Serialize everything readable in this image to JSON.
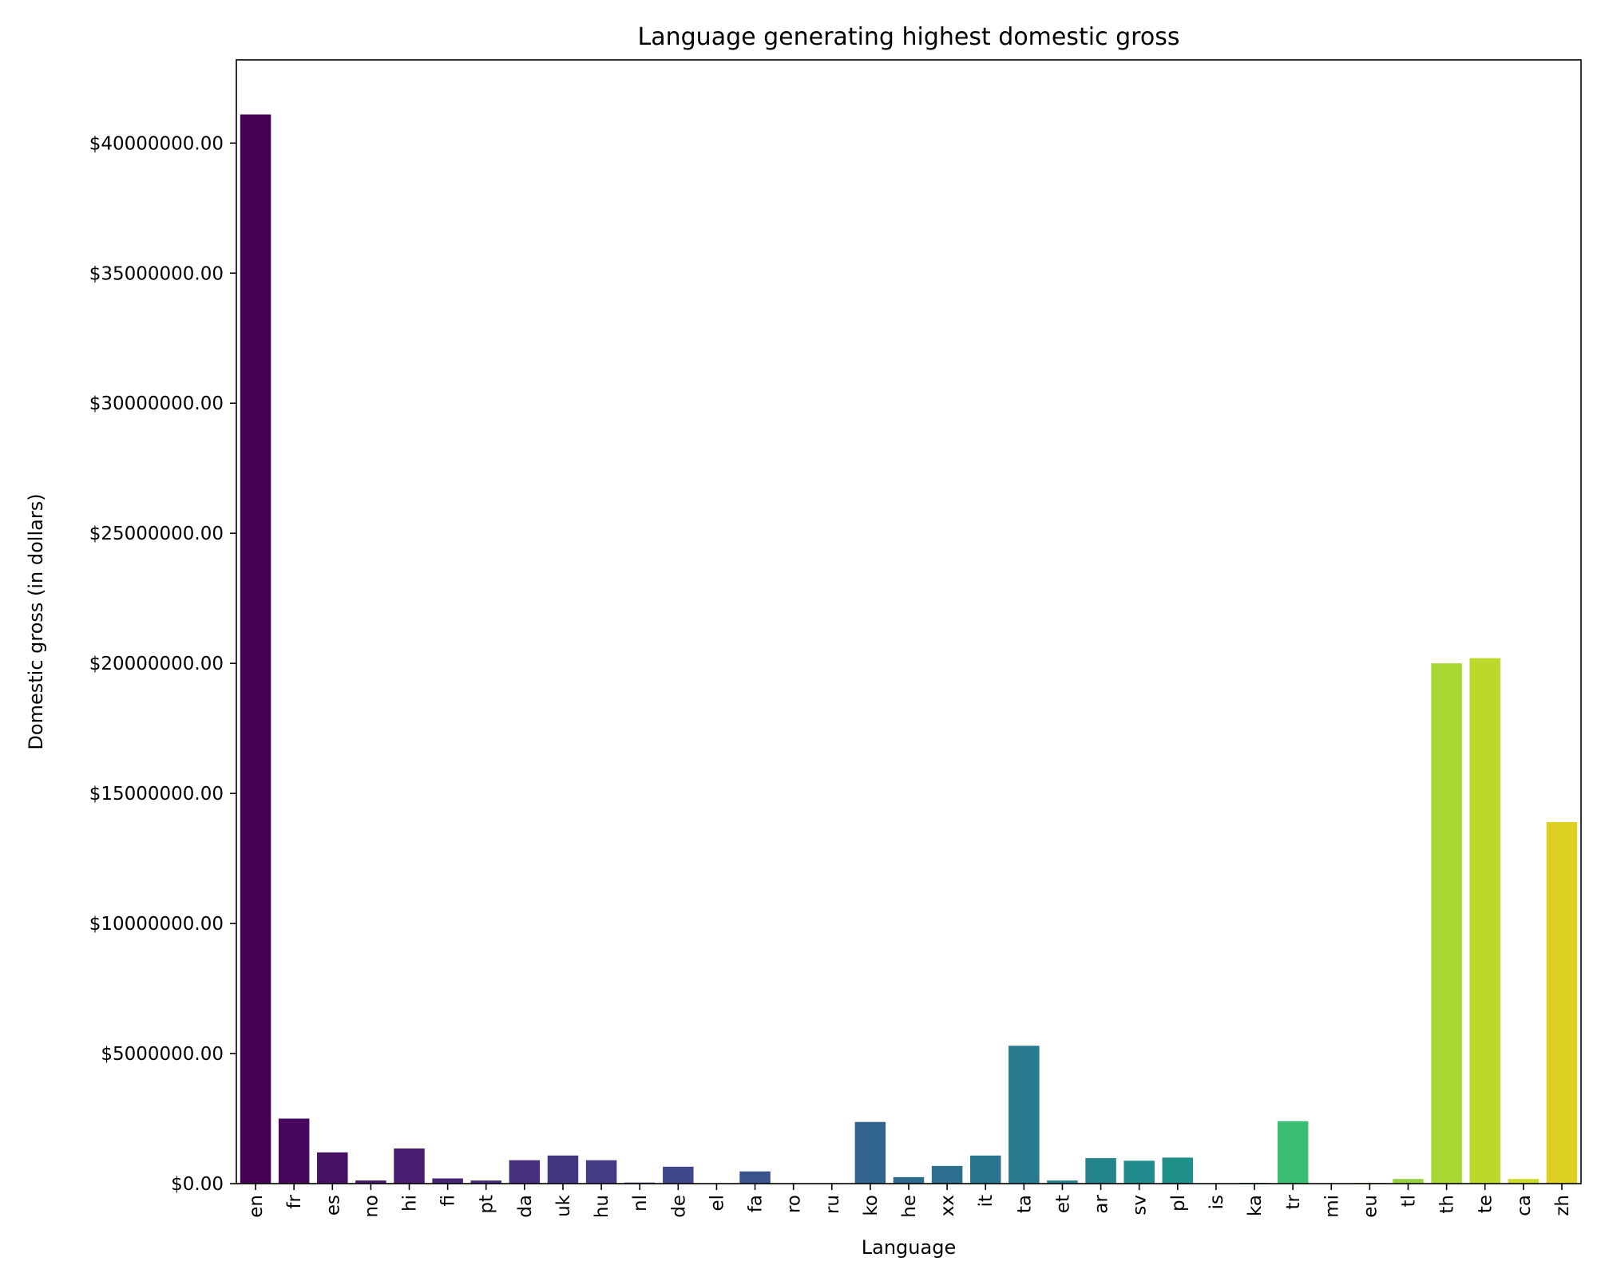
{
  "chart_data": {
    "type": "bar",
    "title": "Language generating highest domestic gross",
    "xlabel": "Language",
    "ylabel": "Domestic gross (in dollars)",
    "ylim": [
      0,
      43200000
    ],
    "yticks": [
      0,
      5000000,
      10000000,
      15000000,
      20000000,
      25000000,
      30000000,
      35000000,
      40000000
    ],
    "ytick_labels": [
      "$0.00",
      "$5000000.00",
      "$10000000.00",
      "$15000000.00",
      "$20000000.00",
      "$25000000.00",
      "$30000000.00",
      "$35000000.00",
      "$40000000.00"
    ],
    "categories": [
      "en",
      "fr",
      "es",
      "no",
      "hi",
      "fi",
      "pt",
      "da",
      "uk",
      "hu",
      "nl",
      "de",
      "el",
      "fa",
      "ro",
      "ru",
      "ko",
      "he",
      "xx",
      "it",
      "ta",
      "et",
      "ar",
      "sv",
      "pl",
      "is",
      "ka",
      "tr",
      "mi",
      "eu",
      "tl",
      "th",
      "te",
      "ca",
      "zh"
    ],
    "values": [
      41100000,
      2500000,
      1200000,
      120000,
      1350000,
      200000,
      120000,
      900000,
      1080000,
      900000,
      40000,
      650000,
      0,
      470000,
      0,
      0,
      2370000,
      250000,
      680000,
      1080000,
      5300000,
      120000,
      980000,
      880000,
      1000000,
      0,
      30000,
      2400000,
      0,
      30000,
      180000,
      20000000,
      20200000,
      180000,
      13900000
    ],
    "colors": [
      "#440154",
      "#46085c",
      "#471063",
      "#481769",
      "#481d6f",
      "#482475",
      "#472a7a",
      "#46307e",
      "#443782",
      "#423d85",
      "#404388",
      "#3e4989",
      "#3b4e8a",
      "#39548b",
      "#365a8c",
      "#335f8c",
      "#31658d",
      "#2e6a8d",
      "#2c6f8e",
      "#2a758e",
      "#287a8e",
      "#26808e",
      "#24858d",
      "#218a8c",
      "#1f9089",
      "#1f9487",
      "#23a383",
      "#3bbd73",
      "#66c556",
      "#82cc4a",
      "#95d23f",
      "#a8d632",
      "#bbd92a",
      "#cddb26",
      "#ddd020"
    ],
    "grid": false,
    "legend": "none"
  }
}
